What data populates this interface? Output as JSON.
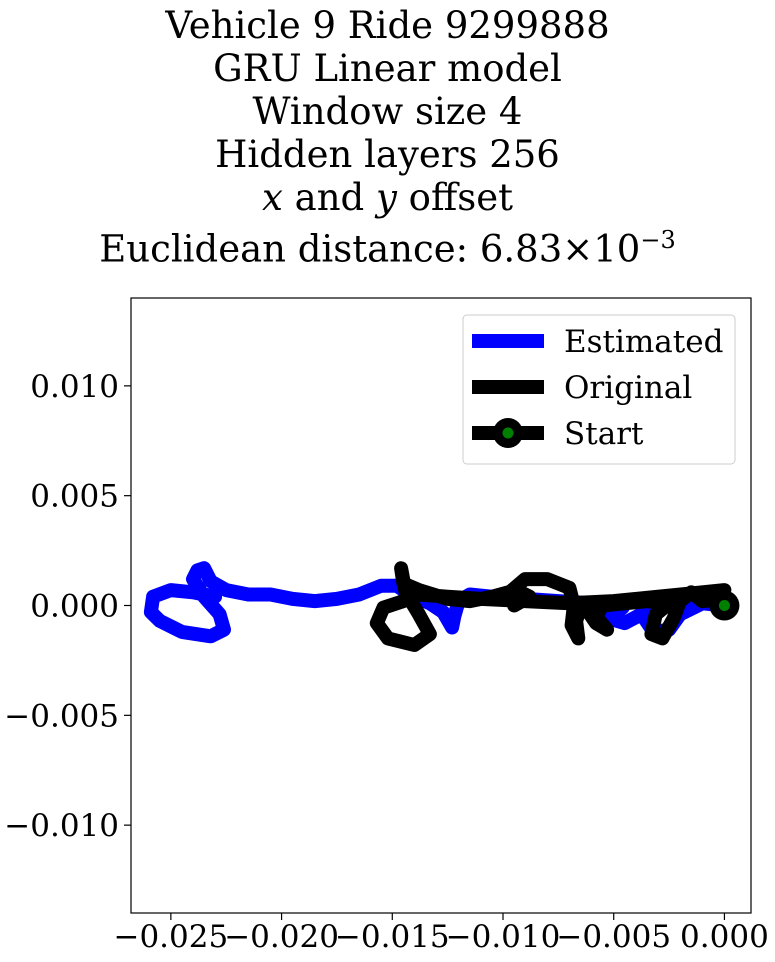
{
  "chart_data": {
    "type": "line",
    "title_lines": [
      "Vehicle 9 Ride 9299888",
      "GRU Linear model",
      "Window size 4",
      "Hidden layers 256",
      "x and y offset",
      "Euclidean distance: 6.83×10⁻³"
    ],
    "xlabel": "",
    "ylabel": "",
    "xlim": [
      -0.0268,
      0.0012
    ],
    "ylim": [
      -0.014,
      0.014
    ],
    "xticks": [
      -0.025,
      -0.02,
      -0.015,
      -0.01,
      -0.005,
      0.0
    ],
    "xtick_labels": [
      "−0.025",
      "−0.020",
      "−0.015",
      "−0.010",
      "−0.005",
      "0.000"
    ],
    "yticks": [
      0.01,
      0.005,
      0.0,
      -0.005,
      -0.01
    ],
    "ytick_labels": [
      "0.010",
      "0.005",
      "0.000",
      "−0.005",
      "−0.010"
    ],
    "grid": false,
    "legend_position": "upper-right",
    "series": [
      {
        "name": "Estimated",
        "color": "#0000ff",
        "points": [
          [
            0.0,
            0.0
          ],
          [
            -0.001,
            0.0001
          ],
          [
            -0.002,
            -0.0004
          ],
          [
            -0.0025,
            -0.0011
          ],
          [
            -0.0032,
            -0.0012
          ],
          [
            -0.0036,
            -0.0006
          ],
          [
            -0.0032,
            -0.0001
          ],
          [
            -0.0045,
            -0.0008
          ],
          [
            -0.0052,
            -0.0006
          ],
          [
            -0.0046,
            -0.0001
          ],
          [
            -0.006,
            0.0001
          ],
          [
            -0.0075,
            0.0002
          ],
          [
            -0.009,
            0.0003
          ],
          [
            -0.0105,
            0.0004
          ],
          [
            -0.0115,
            0.0005
          ],
          [
            -0.012,
            0.0002
          ],
          [
            -0.0122,
            -0.0005
          ],
          [
            -0.0123,
            -0.001
          ],
          [
            -0.0127,
            -0.0003
          ],
          [
            -0.0133,
            0.0001
          ],
          [
            -0.0142,
            0.0005
          ],
          [
            -0.0148,
            0.0009
          ],
          [
            -0.0155,
            0.0009
          ],
          [
            -0.0165,
            0.0005
          ],
          [
            -0.0175,
            0.0003
          ],
          [
            -0.0185,
            0.0002
          ],
          [
            -0.0195,
            0.0003
          ],
          [
            -0.0205,
            0.0005
          ],
          [
            -0.0215,
            0.0005
          ],
          [
            -0.0225,
            0.0007
          ],
          [
            -0.0232,
            0.0011
          ],
          [
            -0.0235,
            0.0017
          ],
          [
            -0.0238,
            0.0016
          ],
          [
            -0.024,
            0.0012
          ],
          [
            -0.0235,
            0.0004
          ],
          [
            -0.0228,
            -0.0004
          ],
          [
            -0.0226,
            -0.0011
          ],
          [
            -0.0232,
            -0.0014
          ],
          [
            -0.0245,
            -0.0012
          ],
          [
            -0.0255,
            -0.0007
          ],
          [
            -0.0259,
            -0.0003
          ],
          [
            -0.0258,
            0.0004
          ],
          [
            -0.025,
            0.0007
          ],
          [
            -0.024,
            0.0006
          ],
          [
            -0.023,
            0.0004
          ]
        ]
      },
      {
        "name": "Original",
        "color": "#000000",
        "points": [
          [
            0.0,
            0.0003
          ],
          [
            -0.001,
            0.0002
          ],
          [
            -0.0015,
            0.0006
          ],
          [
            -0.002,
            0.0002
          ],
          [
            -0.0023,
            -0.0006
          ],
          [
            -0.0028,
            -0.0015
          ],
          [
            -0.0033,
            -0.0013
          ],
          [
            -0.0031,
            -0.0004
          ],
          [
            -0.0025,
            0.0001
          ],
          [
            -0.0035,
            0.0002
          ],
          [
            -0.0045,
            0.0001
          ],
          [
            -0.0055,
            0.0
          ],
          [
            -0.0058,
            -0.0005
          ],
          [
            -0.0053,
            -0.0011
          ],
          [
            -0.0058,
            -0.0008
          ],
          [
            -0.0062,
            -0.0002
          ],
          [
            -0.0065,
            -0.0001
          ],
          [
            -0.0067,
            -0.0007
          ],
          [
            -0.0066,
            -0.0015
          ],
          [
            -0.0069,
            -0.0009
          ],
          [
            -0.0068,
            0.0
          ],
          [
            -0.007,
            0.0008
          ],
          [
            -0.008,
            0.0012
          ],
          [
            -0.009,
            0.0012
          ],
          [
            -0.0097,
            0.0006
          ],
          [
            -0.0095,
            0.0
          ],
          [
            -0.0088,
            0.0004
          ],
          [
            -0.0094,
            0.0007
          ],
          [
            -0.0105,
            0.0004
          ],
          [
            -0.0115,
            0.0002
          ],
          [
            -0.0125,
            0.0003
          ],
          [
            -0.0138,
            0.0007
          ],
          [
            -0.0145,
            0.001
          ],
          [
            -0.0146,
            0.0017
          ],
          [
            -0.0144,
            0.0006
          ],
          [
            -0.0138,
            -0.0004
          ],
          [
            -0.0133,
            -0.0013
          ],
          [
            -0.014,
            -0.0018
          ],
          [
            -0.0152,
            -0.0015
          ],
          [
            -0.0157,
            -0.0008
          ],
          [
            -0.0154,
            -0.0001
          ],
          [
            -0.0145,
            0.0002
          ],
          [
            -0.0138,
            0.0005
          ],
          [
            -0.0125,
            0.0004
          ],
          [
            -0.011,
            0.0003
          ],
          [
            -0.009,
            0.0002
          ],
          [
            -0.007,
            0.0001
          ],
          [
            -0.005,
            0.0002
          ],
          [
            -0.003,
            0.0004
          ],
          [
            -0.001,
            0.0006
          ],
          [
            0.0,
            0.0007
          ]
        ]
      }
    ],
    "start_marker": {
      "name": "Start",
      "point": [
        0.0,
        0.0
      ],
      "edge_color": "#000000",
      "face_color": "#008000"
    }
  }
}
